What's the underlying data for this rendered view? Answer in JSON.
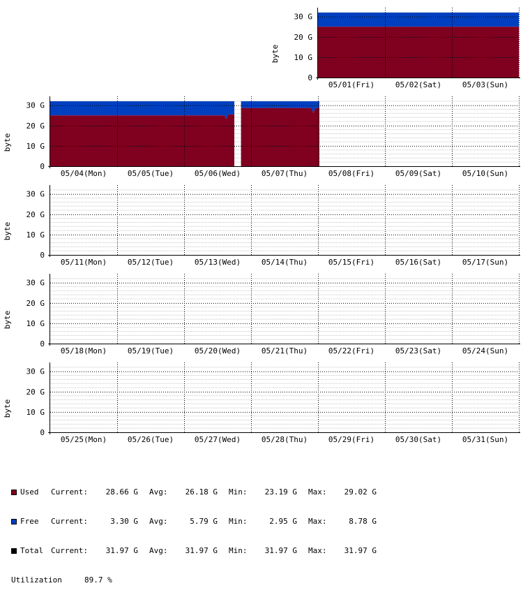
{
  "chart_data": {
    "type": "area",
    "ylabel": "byte",
    "y_ticks": [
      "0",
      "10 G",
      "20 G",
      "30 G"
    ],
    "ylim": [
      0,
      33
    ],
    "series_colors": {
      "used": "#800020",
      "free": "#0040c0",
      "total": "#000000"
    },
    "rows": [
      {
        "days": [
          "05/01(Fri)",
          "05/02(Sat)",
          "05/03(Sun)"
        ],
        "segments": [
          {
            "from_day": 0,
            "to_day": 3,
            "points": [
              {
                "t": 0,
                "used": 25.0,
                "total": 31.97
              },
              {
                "t": 3,
                "used": 25.0,
                "total": 31.97
              }
            ]
          }
        ]
      },
      {
        "days": [
          "05/04(Mon)",
          "05/05(Tue)",
          "05/06(Wed)",
          "05/07(Thu)",
          "05/08(Fri)",
          "05/09(Sat)",
          "05/10(Sun)"
        ],
        "segments": [
          {
            "points": [
              {
                "t": 0,
                "used": 25.0,
                "total": 31.97
              },
              {
                "t": 2.6,
                "used": 25.0,
                "total": 31.97
              },
              {
                "t": 2.63,
                "used": 23.2,
                "total": 31.97
              },
              {
                "t": 2.66,
                "used": 25.5,
                "total": 31.97
              },
              {
                "t": 2.75,
                "used": 25.5,
                "total": 31.97
              }
            ]
          },
          {
            "points": [
              {
                "t": 2.85,
                "used": 28.66,
                "total": 31.97
              },
              {
                "t": 3.9,
                "used": 28.66,
                "total": 31.97
              },
              {
                "t": 3.93,
                "used": 26.0,
                "total": 31.97
              },
              {
                "t": 3.96,
                "used": 28.66,
                "total": 31.97
              },
              {
                "t": 4.02,
                "used": 28.66,
                "total": 31.97
              }
            ]
          }
        ]
      },
      {
        "days": [
          "05/11(Mon)",
          "05/12(Tue)",
          "05/13(Wed)",
          "05/14(Thu)",
          "05/15(Fri)",
          "05/16(Sat)",
          "05/17(Sun)"
        ],
        "segments": []
      },
      {
        "days": [
          "05/18(Mon)",
          "05/19(Tue)",
          "05/20(Wed)",
          "05/21(Thu)",
          "05/22(Fri)",
          "05/23(Sat)",
          "05/24(Sun)"
        ],
        "segments": []
      },
      {
        "days": [
          "05/25(Mon)",
          "05/26(Tue)",
          "05/27(Wed)",
          "05/28(Thu)",
          "05/29(Fri)",
          "05/30(Sat)",
          "05/31(Sun)"
        ],
        "segments": []
      }
    ],
    "legend": [
      {
        "name": "Used",
        "color": "#800020",
        "current": "28.66 G",
        "avg": "26.18 G",
        "min": "23.19 G",
        "max": "29.02 G"
      },
      {
        "name": "Free",
        "color": "#0040c0",
        "current": "3.30 G",
        "avg": "5.79 G",
        "min": "2.95 G",
        "max": "8.78 G"
      },
      {
        "name": "Total",
        "color": "#000000",
        "current": "31.97 G",
        "avg": "31.97 G",
        "min": "31.97 G",
        "max": "31.97 G"
      }
    ],
    "labels": {
      "current": "Current:",
      "avg": "Avg:",
      "min": "Min:",
      "max": "Max:"
    },
    "utilization": {
      "label": "Utilization",
      "value": "89.7 %"
    }
  }
}
